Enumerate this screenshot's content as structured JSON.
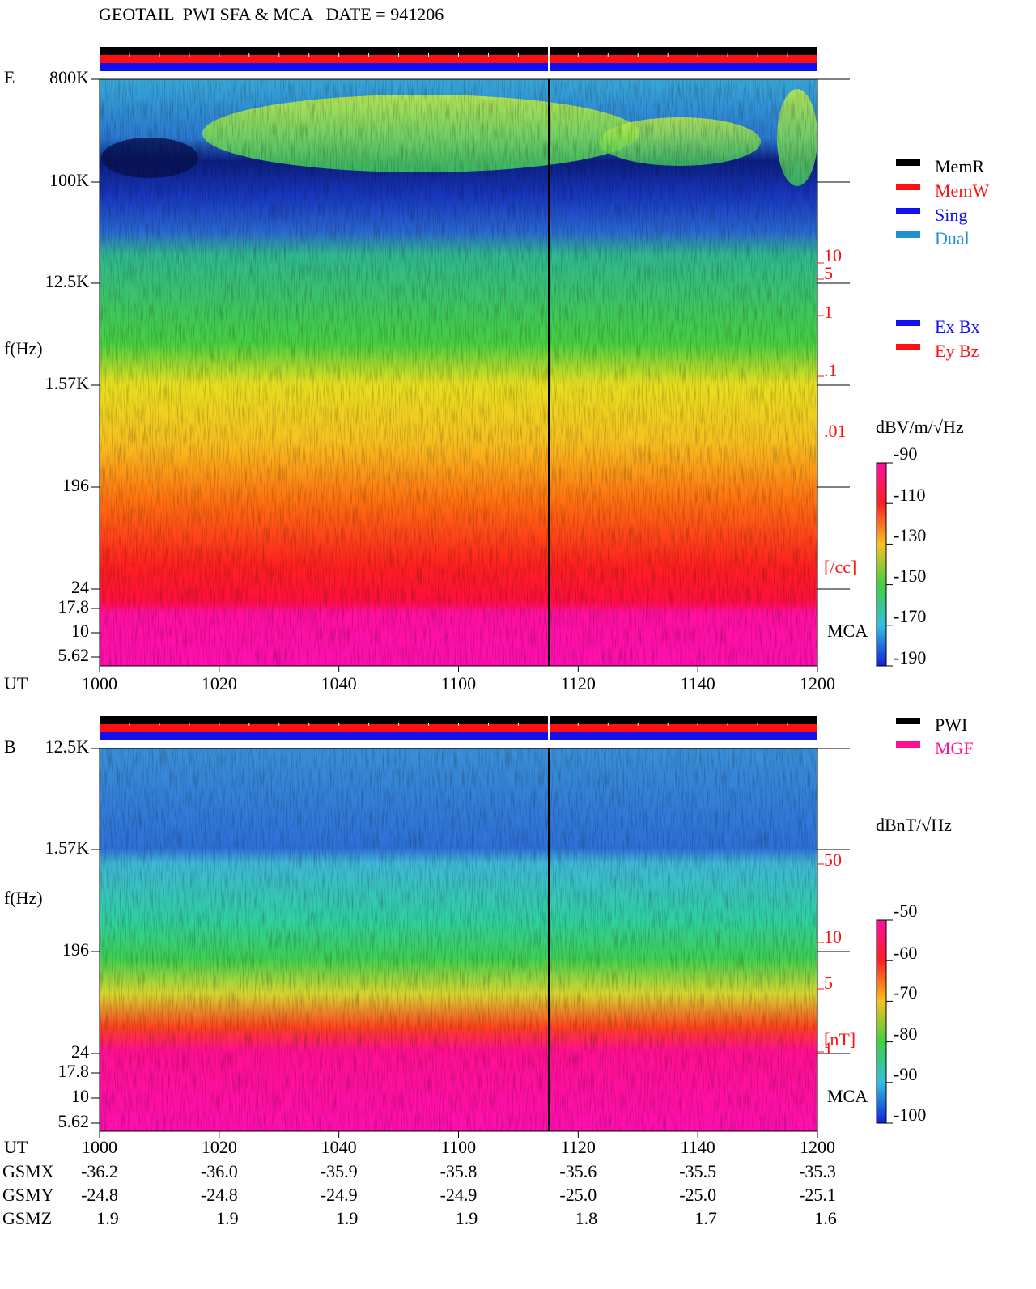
{
  "header": {
    "title": "GEOTAIL  PWI SFA & MCA   DATE = 941206"
  },
  "panels": [
    {
      "label": "E",
      "y_axis_label": "f(Hz)",
      "freq_ticks": [
        "800K",
        "100K",
        "12.5K",
        "1.57K",
        "196",
        "24",
        "17.8",
        "10",
        "5.62"
      ],
      "time_label": "UT",
      "time_ticks": [
        "1000",
        "1020",
        "1040",
        "1100",
        "1120",
        "1140",
        "1200"
      ],
      "density_scale": [
        "10",
        "5",
        "1",
        ".1",
        ".01",
        "[/cc]"
      ],
      "mca_label": "MCA",
      "unit_label": "dBV/m/√Hz",
      "colorbar_ticks": [
        "-90",
        "-110",
        "-130",
        "-150",
        "-170",
        "-190"
      ]
    },
    {
      "label": "B",
      "y_axis_label": "f(Hz)",
      "freq_ticks": [
        "12.5K",
        "1.57K",
        "196",
        "24",
        "17.8",
        "10",
        "5.62"
      ],
      "time_label": "UT",
      "time_ticks": [
        "1000",
        "1020",
        "1040",
        "1100",
        "1120",
        "1140",
        "1200"
      ],
      "density_scale": [
        "50",
        "10",
        "5",
        "1",
        "[nT]"
      ],
      "mca_label": "MCA",
      "unit_label": "dBnT/√Hz",
      "colorbar_ticks": [
        "-50",
        "-60",
        "-70",
        "-80",
        "-90",
        "-100"
      ]
    }
  ],
  "legends": {
    "memory": [
      "MemR",
      "MemW",
      "Sing",
      "Dual"
    ],
    "components": [
      "Ex Bx",
      "Ey Bz"
    ],
    "instruments": [
      "PWI",
      "MGF"
    ]
  },
  "orbit": {
    "rows": [
      {
        "label": "GSMX",
        "values": [
          "-36.2",
          "-36.0",
          "-35.9",
          "-35.8",
          "-35.6",
          "-35.5",
          "-35.3"
        ]
      },
      {
        "label": "GSMY",
        "values": [
          "-24.8",
          "-24.8",
          "-24.9",
          "-24.9",
          "-25.0",
          "-25.0",
          "-25.1"
        ]
      },
      {
        "label": "GSMZ",
        "values": [
          "1.9",
          "1.9",
          "1.9",
          "1.9",
          "1.8",
          "1.7",
          "1.6"
        ]
      }
    ]
  }
}
